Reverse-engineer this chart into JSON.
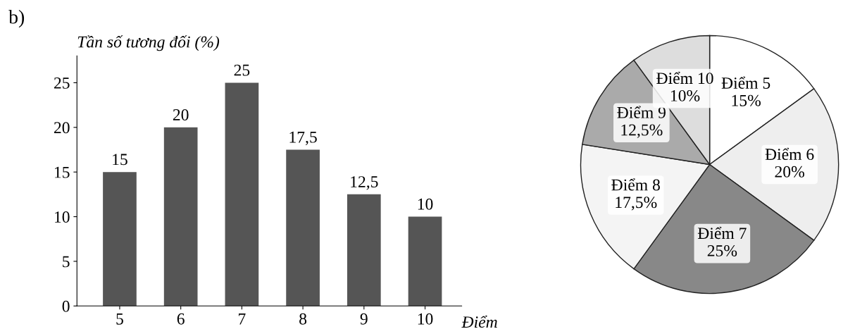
{
  "chart_data": [
    {
      "type": "bar",
      "ylabel": "Tần số tương đối (%)",
      "xlabel": "Điểm",
      "annotations": [
        "b)"
      ],
      "categories": [
        "5",
        "6",
        "7",
        "8",
        "9",
        "10"
      ],
      "values": [
        15,
        20,
        25,
        17.5,
        12.5,
        10
      ],
      "value_labels": [
        "15",
        "20",
        "25",
        "17,5",
        "12,5",
        "10"
      ],
      "color": "#555555",
      "ylim": [
        0,
        28
      ],
      "yticks": [
        0,
        5,
        10,
        15,
        20,
        25
      ],
      "grid": false,
      "legend": false
    },
    {
      "type": "pie",
      "categories": [
        "Điểm 5",
        "Điểm 6",
        "Điểm 7",
        "Điểm 8",
        "Điểm 9",
        "Điểm 10"
      ],
      "values": [
        15,
        20,
        25,
        17.5,
        12.5,
        10
      ],
      "value_labels": [
        "15%",
        "20%",
        "25%",
        "17,5%",
        "12,5%",
        "10%"
      ],
      "colors": [
        "#ffffff",
        "#eeeeee",
        "#888888",
        "#f4f4f4",
        "#aaaaaa",
        "#dddddd"
      ],
      "legend": false
    }
  ]
}
